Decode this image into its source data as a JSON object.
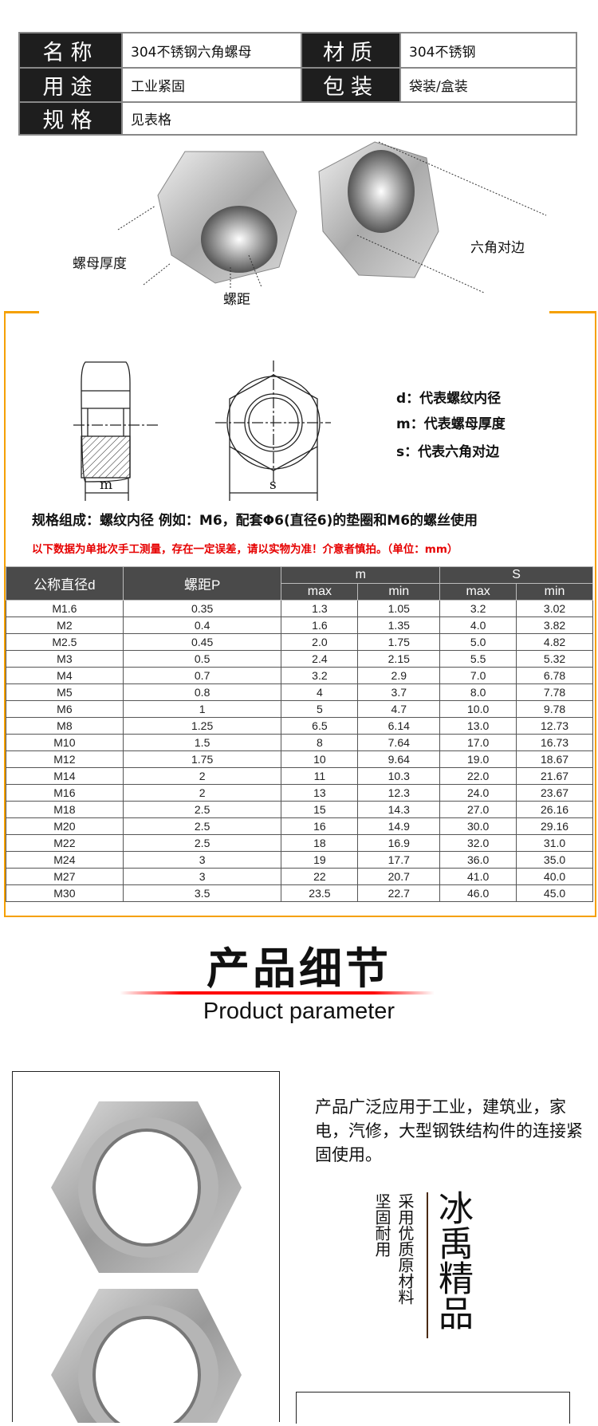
{
  "spec_table": {
    "rows": [
      [
        {
          "label": "名称",
          "value": "304不锈钢六角螺母"
        },
        {
          "label": "材质",
          "value": "304不锈钢"
        }
      ],
      [
        {
          "label": "用途",
          "value": "工业紧固"
        },
        {
          "label": "包装",
          "value": "袋装/盒装"
        }
      ],
      [
        {
          "label": "规格",
          "value": "见表格"
        }
      ]
    ]
  },
  "photo_labels": {
    "thickness": "螺母厚度",
    "pitch": "螺距",
    "across_flats": "六角对边"
  },
  "diagram": {
    "m_label": "m",
    "s_label": "s",
    "legend": [
      "d：代表螺纹内径",
      "m：代表螺母厚度",
      "s：代表六角对边"
    ]
  },
  "notes": {
    "spec_note": "规格组成：螺纹内径 例如：M6，配套Φ6(直径6)的垫圈和M6的螺丝使用",
    "warning": "以下数据为单批次手工测量，存在一定误差，请以实物为准！介意者慎拍。（单位：mm）",
    "warning_color": "#e60000",
    "accent_color": "#f5a000"
  },
  "size_table": {
    "headers": {
      "d": "公称直径d",
      "p": "螺距P",
      "m": "m",
      "s": "S",
      "max": "max",
      "min": "min"
    },
    "rows": [
      [
        "M1.6",
        "0.35",
        "1.3",
        "1.05",
        "3.2",
        "3.02"
      ],
      [
        "M2",
        "0.4",
        "1.6",
        "1.35",
        "4.0",
        "3.82"
      ],
      [
        "M2.5",
        "0.45",
        "2.0",
        "1.75",
        "5.0",
        "4.82"
      ],
      [
        "M3",
        "0.5",
        "2.4",
        "2.15",
        "5.5",
        "5.32"
      ],
      [
        "M4",
        "0.7",
        "3.2",
        "2.9",
        "7.0",
        "6.78"
      ],
      [
        "M5",
        "0.8",
        "4",
        "3.7",
        "8.0",
        "7.78"
      ],
      [
        "M6",
        "1",
        "5",
        "4.7",
        "10.0",
        "9.78"
      ],
      [
        "M8",
        "1.25",
        "6.5",
        "6.14",
        "13.0",
        "12.73"
      ],
      [
        "M10",
        "1.5",
        "8",
        "7.64",
        "17.0",
        "16.73"
      ],
      [
        "M12",
        "1.75",
        "10",
        "9.64",
        "19.0",
        "18.67"
      ],
      [
        "M14",
        "2",
        "11",
        "10.3",
        "22.0",
        "21.67"
      ],
      [
        "M16",
        "2",
        "13",
        "12.3",
        "24.0",
        "23.67"
      ],
      [
        "M18",
        "2.5",
        "15",
        "14.3",
        "27.0",
        "26.16"
      ],
      [
        "M20",
        "2.5",
        "16",
        "14.9",
        "30.0",
        "29.16"
      ],
      [
        "M22",
        "2.5",
        "18",
        "16.9",
        "32.0",
        "31.0"
      ],
      [
        "M24",
        "3",
        "19",
        "17.7",
        "36.0",
        "35.0"
      ],
      [
        "M27",
        "3",
        "22",
        "20.7",
        "41.0",
        "40.0"
      ],
      [
        "M30",
        "3.5",
        "23.5",
        "22.7",
        "46.0",
        "45.0"
      ]
    ]
  },
  "details": {
    "title": "产品细节",
    "subtitle": "Product parameter",
    "description": "产品广泛应用于工业，建筑业，家电，汽修，大型钢铁结构件的连接紧固使用。",
    "brand": "冰禹精品",
    "slogan1": "采用优质原材料",
    "slogan2": "坚固耐用"
  }
}
